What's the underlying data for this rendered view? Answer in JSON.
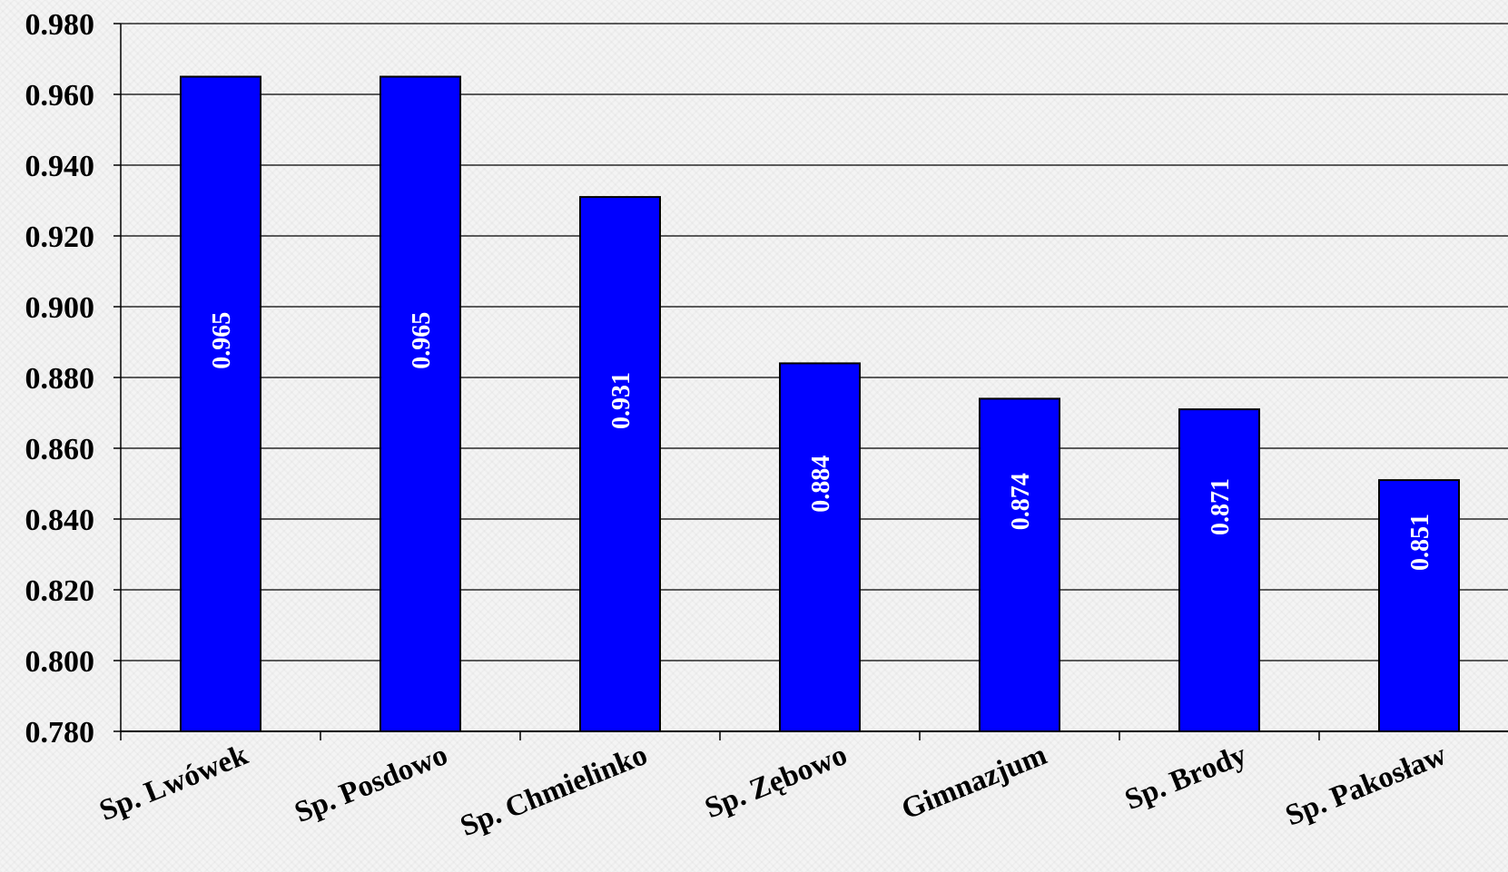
{
  "chart_data": {
    "type": "bar",
    "categories": [
      "Sp. Lwówek",
      "Sp. Posdowo",
      "Sp. Chmielinko",
      "Sp. Zębowo",
      "Gimnazjum",
      "Sp. Brody",
      "Sp. Pakosław"
    ],
    "values": [
      0.965,
      0.965,
      0.931,
      0.884,
      0.874,
      0.871,
      0.851
    ],
    "data_labels": [
      "0.965",
      "0.965",
      "0.931",
      "0.884",
      "0.874",
      "0.871",
      "0.851"
    ],
    "yticks": [
      "0.780",
      "0.800",
      "0.820",
      "0.840",
      "0.860",
      "0.880",
      "0.900",
      "0.920",
      "0.940",
      "0.960",
      "0.980"
    ],
    "ylim": [
      0.78,
      0.98
    ],
    "grid": true,
    "legend": "none",
    "colors": {
      "bar": "#0000ff",
      "bar_border": "#000000",
      "grid": "#000000",
      "data_label": "#ffffff"
    }
  }
}
